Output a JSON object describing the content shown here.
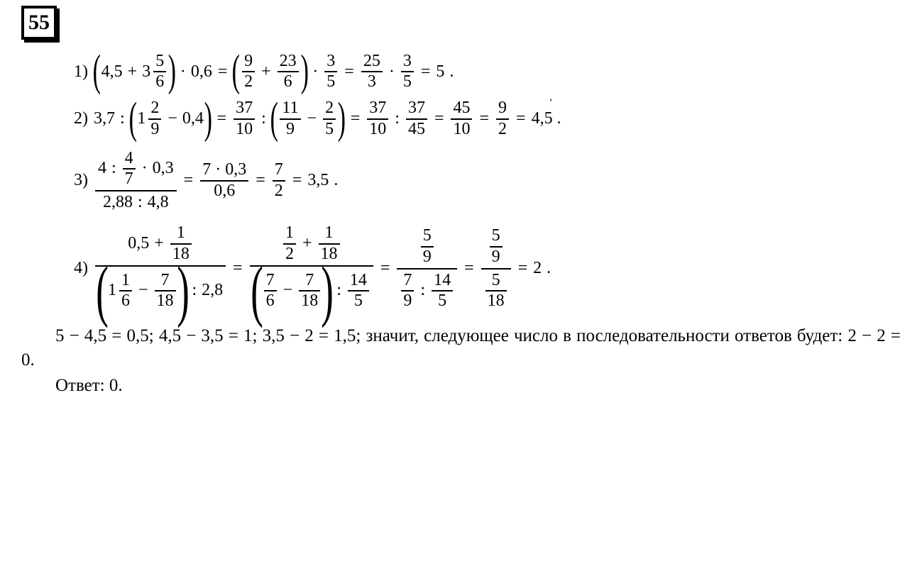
{
  "problem_number": "55",
  "items": {
    "1": {
      "label": "1)",
      "lhs_a": "4,5",
      "lhs_plus": "+",
      "lhs_mixed_whole": "3",
      "lhs_mixed_num": "5",
      "lhs_mixed_den": "6",
      "dot": "·",
      "lhs_b": "0,6",
      "eq": "=",
      "s2_f1n": "9",
      "s2_f1d": "2",
      "s2_plus": "+",
      "s2_f2n": "23",
      "s2_f2d": "6",
      "s2_f3n": "3",
      "s2_f3d": "5",
      "s3_f1n": "25",
      "s3_f1d": "3",
      "s3_f2n": "3",
      "s3_f2d": "5",
      "result": "5",
      "tail": "."
    },
    "2": {
      "label": "2)",
      "a": "3,7",
      "colon": ":",
      "mixed_whole": "1",
      "mixed_num": "2",
      "mixed_den": "9",
      "minus": "−",
      "b": "0,4",
      "eq": "=",
      "f1n": "37",
      "f1d": "10",
      "f2n": "11",
      "f2d": "9",
      "f3n": "2",
      "f3d": "5",
      "f4n": "37",
      "f4d": "10",
      "f5n": "37",
      "f5d": "45",
      "f6n": "45",
      "f6d": "10",
      "f7n": "9",
      "f7d": "2",
      "result": "4,5",
      "tail": "."
    },
    "3": {
      "label": "3)",
      "top_a": "4",
      "top_colon": ":",
      "top_fn": "4",
      "top_fd": "7",
      "top_dot": "·",
      "top_b": "0,3",
      "bot_a": "2,88",
      "bot_colon": ":",
      "bot_b": "4,8",
      "eq": "=",
      "s2_topn": "7 · 0,3",
      "s2_botn": "0,6",
      "s3_n": "7",
      "s3_d": "2",
      "result": "3,5",
      "tail": "."
    },
    "4": {
      "label": "4)",
      "t_a": "0,5",
      "t_plus": "+",
      "t_fn": "1",
      "t_fd": "18",
      "b_mixed_whole": "1",
      "b_mixed_num": "1",
      "b_mixed_den": "6",
      "b_minus": "−",
      "b_fn": "7",
      "b_fd": "18",
      "b_colon": ":",
      "b_c": "2,8",
      "eq": "=",
      "s2_t_f1n": "1",
      "s2_t_f1d": "2",
      "s2_t_plus": "+",
      "s2_t_f2n": "1",
      "s2_t_f2d": "18",
      "s2_b_f1n": "7",
      "s2_b_f1d": "6",
      "s2_b_minus": "−",
      "s2_b_f2n": "7",
      "s2_b_f2d": "18",
      "s2_b_colon": ":",
      "s2_b_f3n": "14",
      "s2_b_f3d": "5",
      "s3_t_n": "5",
      "s3_t_d": "9",
      "s3_b_f1n": "7",
      "s3_b_f1d": "9",
      "s3_b_colon": ":",
      "s3_b_f2n": "14",
      "s3_b_f2d": "5",
      "s4_t_n": "5",
      "s4_t_d": "9",
      "s4_b_n": "5",
      "s4_b_d": "18",
      "result": "2",
      "tail": "."
    }
  },
  "explain": {
    "line1": "5 − 4,5 = 0,5; 4,5 − 3,5 = 1; 3,5 − 2 = 1,5; значит, следующее число в последовательности ответов будет: 2 − 2 = 0.",
    "answer": "Ответ: 0."
  }
}
